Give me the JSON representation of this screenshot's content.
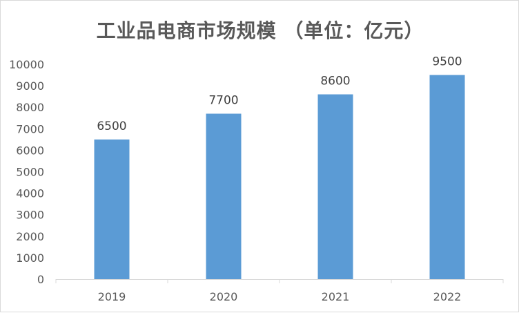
{
  "chart_data": {
    "type": "bar",
    "title": "工业品电商市场规模 （单位：亿元）",
    "categories": [
      "2019",
      "2020",
      "2021",
      "2022"
    ],
    "values": [
      6500,
      7700,
      8600,
      9500
    ],
    "data_labels": [
      "6500",
      "7700",
      "8600",
      "9500"
    ],
    "xlabel": "",
    "ylabel": "",
    "ylim": [
      0,
      10000
    ],
    "yticks": [
      "0",
      "1000",
      "2000",
      "3000",
      "4000",
      "5000",
      "6000",
      "7000",
      "8000",
      "9000",
      "10000"
    ],
    "grid": false,
    "legend": "none",
    "bar_color": "#5b9bd5"
  }
}
